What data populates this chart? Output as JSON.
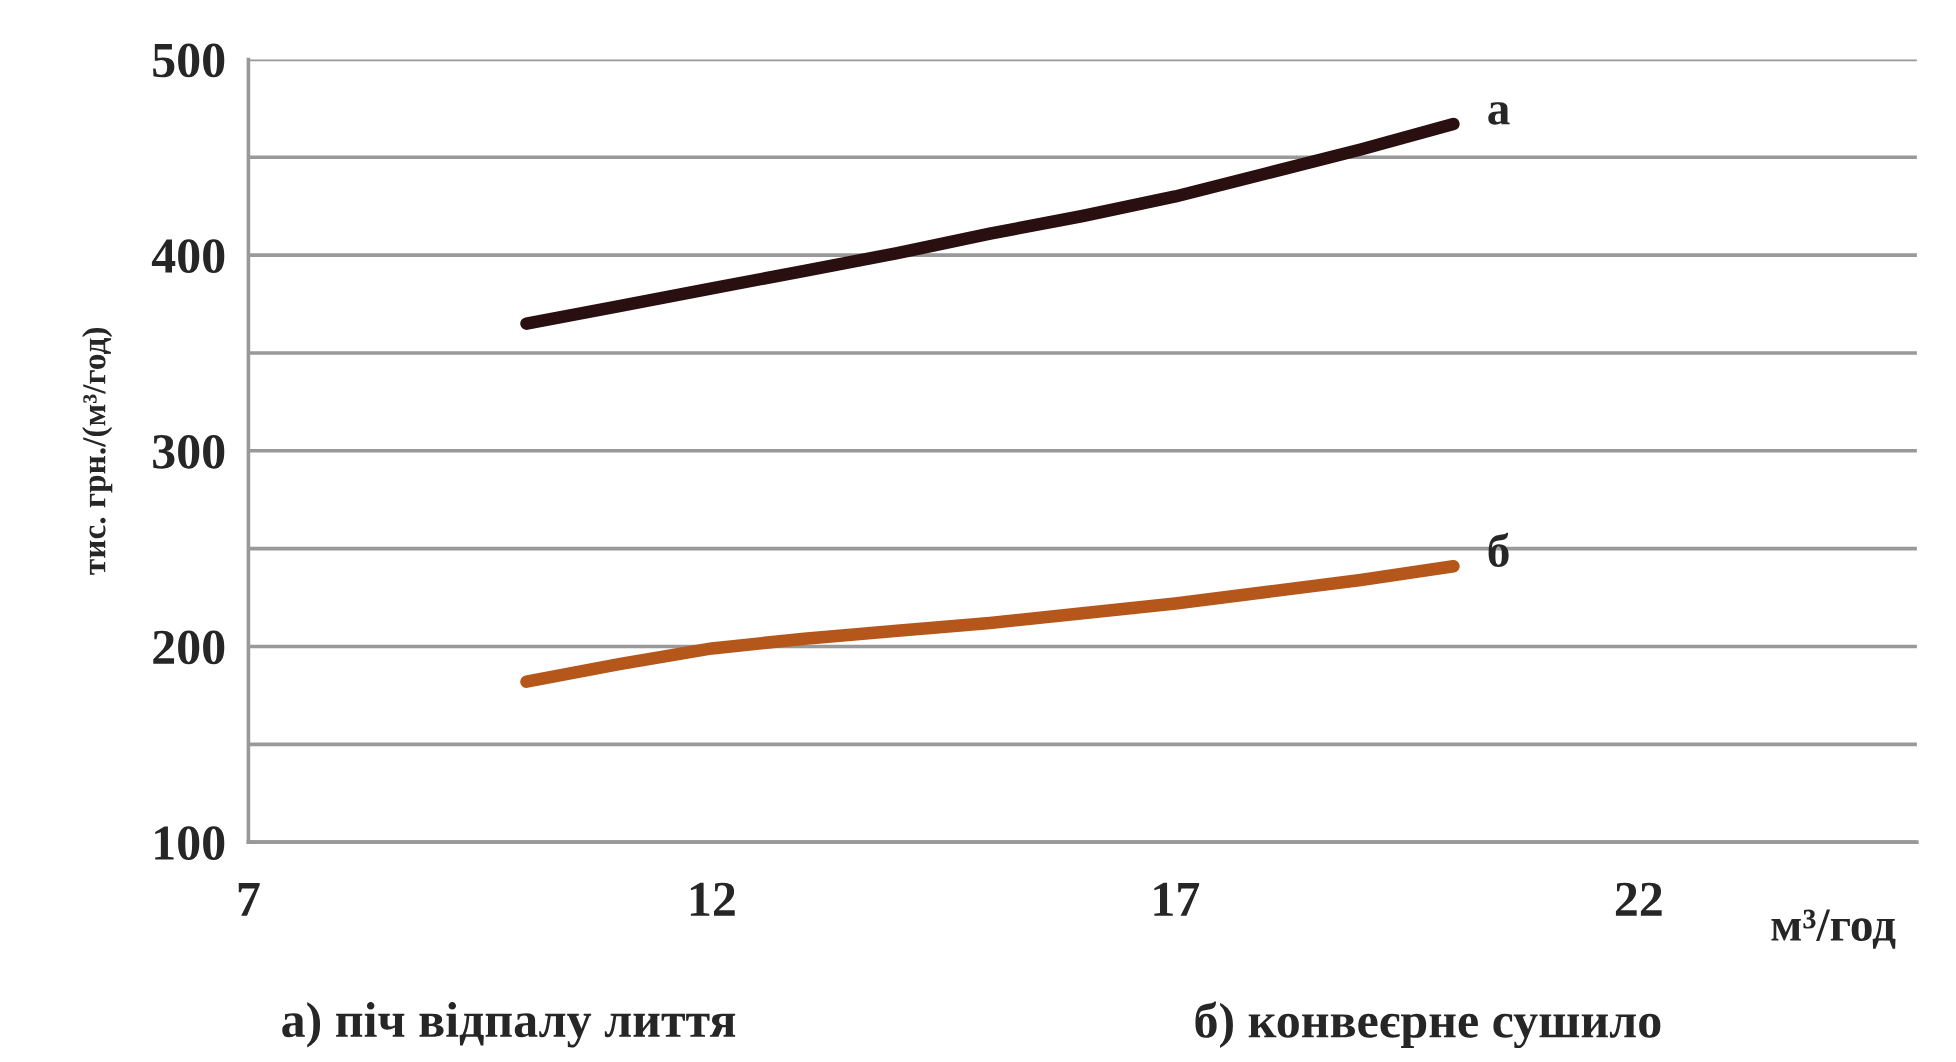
{
  "chart_data": {
    "type": "line",
    "xlabel": "м³/год",
    "ylabel": "тис. грн./(м³/год)",
    "xlim": [
      7,
      25
    ],
    "xticks": [
      7,
      12,
      17,
      22
    ],
    "ylim": [
      100,
      500
    ],
    "yticks": [
      100,
      {
        "value": 150,
        "label": null
      },
      200,
      {
        "value": 250,
        "label": null
      },
      300,
      {
        "value": 350,
        "label": null
      },
      400,
      {
        "value": 450,
        "label": null
      },
      500
    ],
    "grid": "y",
    "legend": false,
    "marker": "none",
    "line_style": "solid",
    "series": [
      {
        "name": "а",
        "color": "#2a0f10",
        "x": [
          10,
          11,
          12,
          13,
          14,
          15,
          16,
          17,
          18,
          19,
          20
        ],
        "values": [
          365,
          374,
          383,
          392,
          401,
          411,
          420,
          430,
          442,
          454,
          467
        ]
      },
      {
        "name": "б",
        "color": "#b5561b",
        "x": [
          10,
          11,
          12,
          13,
          14,
          15,
          16,
          17,
          18,
          19,
          20
        ],
        "values": [
          182,
          191,
          199,
          204,
          208,
          212,
          217,
          222,
          228,
          234,
          241
        ]
      }
    ],
    "annotations": [
      "а) піч відпалу лиття",
      "б) конвеєрне сушило"
    ]
  }
}
